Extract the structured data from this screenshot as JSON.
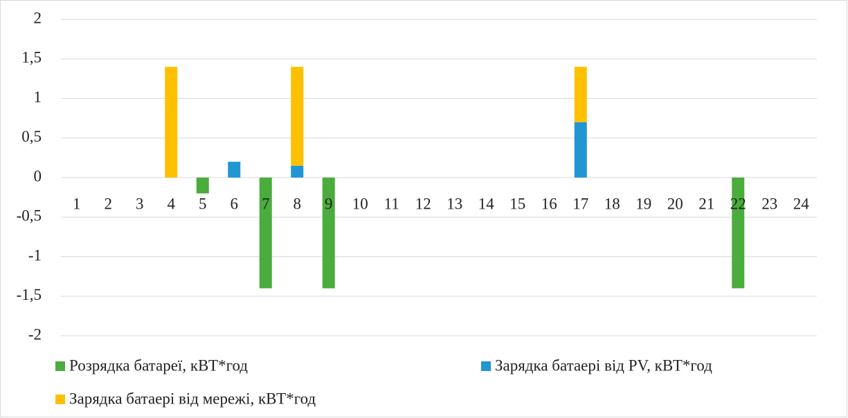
{
  "chart_data": {
    "type": "bar",
    "stacked": true,
    "categories": [
      "1",
      "2",
      "3",
      "4",
      "5",
      "6",
      "7",
      "8",
      "9",
      "10",
      "11",
      "12",
      "13",
      "14",
      "15",
      "16",
      "17",
      "18",
      "19",
      "20",
      "21",
      "22",
      "23",
      "24"
    ],
    "series": [
      {
        "name": "Розрядка батареї, кВТ*год",
        "color": "#4aac3c",
        "values": [
          0,
          0,
          0,
          0,
          -0.2,
          0,
          -1.4,
          0,
          -1.4,
          0,
          0,
          0,
          0,
          0,
          0,
          0,
          0,
          0,
          0,
          0,
          0,
          -1.4,
          0,
          0
        ]
      },
      {
        "name": "Зарядка батаері від PV, кВТ*год",
        "color": "#2196d3",
        "values": [
          0,
          0,
          0,
          0,
          0,
          0.2,
          0,
          0.15,
          0,
          0,
          0,
          0,
          0,
          0,
          0,
          0,
          0.7,
          0,
          0,
          0,
          0,
          0,
          0,
          0
        ]
      },
      {
        "name": "Зарядка батаері від мережі, кВТ*год",
        "color": "#ffc000",
        "values": [
          0,
          0,
          0,
          1.4,
          0,
          0,
          0,
          1.25,
          0,
          0,
          0,
          0,
          0,
          0,
          0,
          0,
          0.7,
          0,
          0,
          0,
          0,
          0,
          0,
          0
        ]
      }
    ],
    "ylim": [
      -2,
      2
    ],
    "yticks": [
      2,
      {
        "value": 1.5,
        "label": "1,5"
      },
      1,
      {
        "value": 0.5,
        "label": "0,5"
      },
      0,
      {
        "value": -0.5,
        "label": "-0,5"
      },
      -1,
      {
        "value": -1.5,
        "label": "-1,5"
      },
      -2
    ],
    "grid": true,
    "legend": "bottom"
  }
}
